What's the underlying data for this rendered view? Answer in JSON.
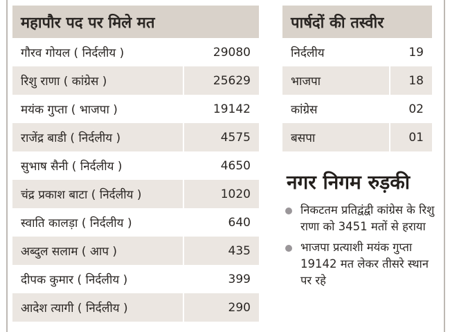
{
  "mayor_table": {
    "title": "महापौर पद पर मिले मत",
    "rows": [
      {
        "name": "गौरव गोयल ( निर्दलीय )",
        "votes": "29080"
      },
      {
        "name": "रिशु राणा ( कांग्रेस )",
        "votes": "25629"
      },
      {
        "name": "मयंक गुप्ता ( भाजपा )",
        "votes": "19142"
      },
      {
        "name": "राजेंद्र बाडी ( निर्दलीय )",
        "votes": "4575"
      },
      {
        "name": "सुभाष सैनी ( निर्दलीय )",
        "votes": "4650"
      },
      {
        "name": "चंद्र प्रकाश बाटा ( निर्दलीय )",
        "votes": "1020"
      },
      {
        "name": "स्वाति कालड़ा ( निर्दलीय )",
        "votes": "640"
      },
      {
        "name": "अब्दुल सलाम ( आप )",
        "votes": "435"
      },
      {
        "name": "दीपक कुमार ( निर्दलीय )",
        "votes": "399"
      },
      {
        "name": "आदेश त्यागी ( निर्दलीय )",
        "votes": "290"
      }
    ]
  },
  "councillor_table": {
    "title": "पार्षदों की तस्वीर",
    "rows": [
      {
        "party": "निर्दलीय",
        "count": "19"
      },
      {
        "party": "भाजपा",
        "count": "18"
      },
      {
        "party": "कांग्रेस",
        "count": "02"
      },
      {
        "party": "बसपा",
        "count": "01"
      }
    ]
  },
  "summary": {
    "heading": "नगर निगम रुड़की",
    "bullets": [
      "निकटतम प्रतिद्वंद्वी कांग्रेस के रिशु राणा को 3451 मतों से हराया",
      "भाजपा प्रत्याशी मयंक गुप्ता 19142 मत लेकर तीसरे स्थान पर रहे"
    ]
  }
}
